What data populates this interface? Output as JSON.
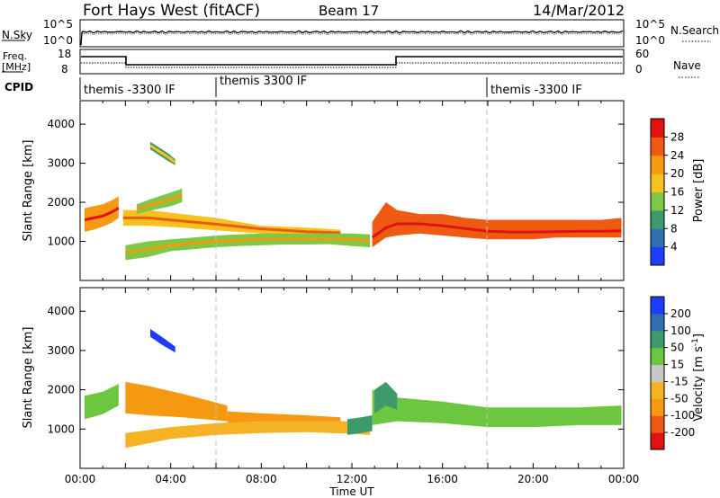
{
  "header": {
    "station": "Fort Hays West (fitACF)",
    "beam": "Beam 17",
    "date": "14/Mar/2012"
  },
  "noise_panel": {
    "left_label": "N.Sky",
    "left_ticks": [
      "10^5",
      "10^0"
    ],
    "right_label": "N.Search",
    "right_ticks": [
      "10^5",
      "10^0"
    ]
  },
  "freq_panel": {
    "left_label_lines": [
      "Freq.",
      "[MHz]"
    ],
    "left_ticks": [
      "18",
      "8"
    ],
    "right_label": "Nave",
    "right_ticks": [
      "60",
      "0"
    ]
  },
  "cpid": {
    "label": "CPID",
    "segments": [
      {
        "text": "themis -3300 IF",
        "start_hour": 0
      },
      {
        "text": "themis 3300 IF",
        "start_hour": 6
      },
      {
        "text": "themis -3300 IF",
        "start_hour": 18
      }
    ]
  },
  "colors": {
    "power": [
      "#1e3cff",
      "#2e6fb0",
      "#3d9a6a",
      "#7fc845",
      "#f7c21c",
      "#f59a10",
      "#ee5a12",
      "#e21212"
    ],
    "velocity": [
      "#e21212",
      "#ee5a12",
      "#f59a10",
      "#f5b225",
      "#c8c8c8",
      "#6dc63f",
      "#3d9a6a",
      "#2e6fb0",
      "#1e3cff"
    ],
    "dash": "#c0c0c0"
  },
  "chart_data": [
    {
      "type": "heatmap",
      "title": "",
      "xlabel": "Time UT",
      "ylabel": "Slant Range [km]",
      "xlim": [
        0,
        24
      ],
      "ylim": [
        0,
        4600
      ],
      "x_ticks": [
        "00:00",
        "04:00",
        "08:00",
        "12:00",
        "16:00",
        "20:00",
        "00:00"
      ],
      "y_ticks": [
        1000,
        2000,
        3000,
        4000
      ],
      "colorbar": {
        "label": "Power [dB]",
        "range": [
          0,
          32
        ],
        "ticks": [
          4,
          8,
          12,
          16,
          20,
          24,
          28
        ]
      },
      "vertical_dashes_hour": [
        6,
        18
      ],
      "bands": [
        {
          "name": "band-a",
          "x": [
            0.2,
            0.6,
            1.0,
            1.4,
            1.7
          ],
          "lower": [
            1250,
            1300,
            1380,
            1480,
            1600
          ],
          "upper": [
            1850,
            1900,
            1950,
            2050,
            2150
          ],
          "core": [
            1550,
            1600,
            1650,
            1750,
            1850
          ],
          "value": 22
        },
        {
          "name": "band-b",
          "x": [
            1.9,
            3.0,
            4.5,
            6.0,
            8.0,
            10.0,
            11.5
          ],
          "lower": [
            1400,
            1400,
            1350,
            1280,
            1200,
            1150,
            1150
          ],
          "upper": [
            1800,
            1800,
            1700,
            1600,
            1400,
            1350,
            1300
          ],
          "core": [
            1600,
            1600,
            1520,
            1440,
            1320,
            1250,
            1220
          ],
          "value": 16
        },
        {
          "name": "band-c",
          "x": [
            2.0,
            3.0,
            4.0,
            5.0,
            6.0,
            7.0,
            8.0,
            9.0,
            10.0,
            11.0,
            12.0,
            12.8
          ],
          "lower": [
            520,
            600,
            750,
            800,
            850,
            880,
            900,
            920,
            920,
            930,
            880,
            850
          ],
          "upper": [
            900,
            1000,
            1050,
            1100,
            1150,
            1180,
            1200,
            1200,
            1200,
            1200,
            1200,
            1180
          ],
          "core": [
            720,
            800,
            900,
            950,
            1000,
            1030,
            1050,
            1060,
            1060,
            1060,
            1050,
            1020
          ],
          "value": 15
        },
        {
          "name": "band-d",
          "x": [
            2.5,
            3.2,
            4.0,
            4.5
          ],
          "lower": [
            1700,
            1800,
            1900,
            2000
          ],
          "upper": [
            1950,
            2100,
            2250,
            2350
          ],
          "core": [
            1820,
            1950,
            2070,
            2180
          ],
          "value": 12
        },
        {
          "name": "band-e",
          "x": [
            3.1,
            3.5,
            3.9,
            4.2
          ],
          "lower": [
            3350,
            3200,
            3050,
            2950
          ],
          "upper": [
            3550,
            3400,
            3250,
            3100
          ],
          "core": [
            3450,
            3300,
            3150,
            3020
          ],
          "value": 10
        },
        {
          "name": "band-f",
          "x": [
            12.9,
            13.5,
            14.0,
            15.0,
            16.0,
            17.0,
            18.0,
            19.0,
            20.0,
            21.0,
            22.0,
            23.0,
            23.9
          ],
          "lower": [
            850,
            1100,
            1150,
            1200,
            1150,
            1100,
            1050,
            1050,
            1050,
            1100,
            1100,
            1100,
            1100
          ],
          "upper": [
            1500,
            2000,
            1800,
            1700,
            1700,
            1600,
            1550,
            1550,
            1550,
            1550,
            1550,
            1550,
            1600
          ],
          "core": [
            1100,
            1350,
            1450,
            1450,
            1400,
            1330,
            1260,
            1240,
            1240,
            1250,
            1260,
            1260,
            1270
          ],
          "value": 26
        }
      ]
    },
    {
      "type": "heatmap",
      "title": "",
      "xlabel": "Time UT",
      "ylabel": "Slant Range [km]",
      "xlim": [
        0,
        24
      ],
      "ylim": [
        0,
        4600
      ],
      "x_ticks": [
        "00:00",
        "04:00",
        "08:00",
        "12:00",
        "16:00",
        "20:00",
        "00:00"
      ],
      "y_ticks": [
        1000,
        2000,
        3000,
        4000
      ],
      "colorbar": {
        "label": "Velocity [m s^-1]",
        "ticks": [
          "200",
          "100",
          "50",
          "15",
          "-15",
          "-50",
          "-100",
          "-200"
        ]
      },
      "vertical_dashes_hour": [
        6,
        18
      ],
      "bands": [
        {
          "name": "vel-a",
          "x": [
            0.2,
            1.0,
            1.7
          ],
          "lower": [
            1250,
            1380,
            1600
          ],
          "upper": [
            1850,
            1950,
            2150
          ],
          "value": 0
        },
        {
          "name": "vel-b",
          "x": [
            2.0,
            3.0,
            4.5,
            5.5,
            6.5
          ],
          "lower": [
            1400,
            1350,
            1300,
            1250,
            1200
          ],
          "upper": [
            2200,
            2100,
            1900,
            1750,
            1600
          ],
          "value": -80
        },
        {
          "name": "vel-c",
          "x": [
            6.5,
            8.0,
            10.0,
            11.5
          ],
          "lower": [
            1150,
            1100,
            1100,
            1100
          ],
          "upper": [
            1450,
            1400,
            1350,
            1300
          ],
          "value": -50
        },
        {
          "name": "vel-d",
          "x": [
            2.0,
            4.0,
            6.0,
            8.0,
            10.0,
            12.0,
            12.8
          ],
          "lower": [
            520,
            750,
            850,
            900,
            920,
            880,
            850
          ],
          "upper": [
            900,
            1050,
            1150,
            1200,
            1200,
            1200,
            1180
          ],
          "value": -40
        },
        {
          "name": "vel-e",
          "x": [
            11.8,
            12.4,
            12.9
          ],
          "lower": [
            850,
            900,
            950
          ],
          "upper": [
            1250,
            1300,
            1350
          ],
          "value": 40
        },
        {
          "name": "vel-f",
          "x": [
            3.1,
            3.6,
            4.2
          ],
          "lower": [
            3350,
            3150,
            2950
          ],
          "upper": [
            3550,
            3350,
            3100
          ],
          "value": 180
        },
        {
          "name": "vel-g",
          "x": [
            12.9,
            14.0,
            16.0,
            18.0,
            20.0,
            22.0,
            23.9
          ],
          "lower": [
            1100,
            1200,
            1150,
            1050,
            1050,
            1100,
            1100
          ],
          "upper": [
            2000,
            1800,
            1700,
            1550,
            1550,
            1550,
            1600
          ],
          "value": 0
        },
        {
          "name": "vel-h",
          "x": [
            13.0,
            13.5,
            14.0
          ],
          "lower": [
            1400,
            1600,
            1500
          ],
          "upper": [
            2000,
            2200,
            1900
          ],
          "value": 40
        }
      ]
    }
  ]
}
